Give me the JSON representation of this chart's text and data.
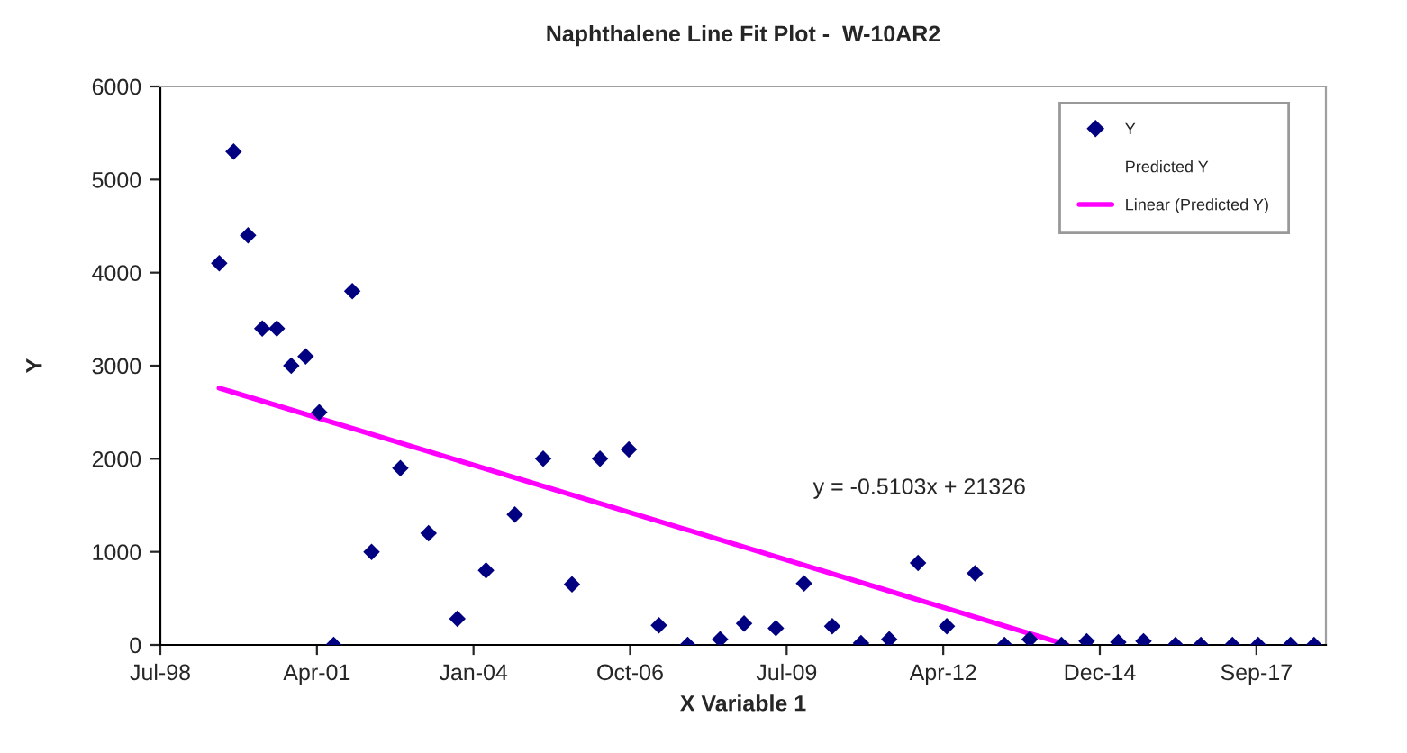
{
  "chart_data": {
    "type": "scatter",
    "title": "Naphthalene Line Fit Plot -  W-10AR2",
    "xlabel": "X Variable 1",
    "ylabel": "Y",
    "xlim": [
      "1998-07-24",
      "2018-12-10"
    ],
    "xticks": [
      {
        "value": "1998-07-24",
        "label": "Jul-98"
      },
      {
        "value": "2001-04-19",
        "label": "Apr-01"
      },
      {
        "value": "2004-01-14",
        "label": "Jan-04"
      },
      {
        "value": "2006-10-10",
        "label": "Oct-06"
      },
      {
        "value": "2009-07-06",
        "label": "Jul-09"
      },
      {
        "value": "2012-04-01",
        "label": "Apr-12"
      },
      {
        "value": "2014-12-27",
        "label": "Dec-14"
      },
      {
        "value": "2017-09-22",
        "label": "Sep-17"
      }
    ],
    "ylim": [
      0,
      6000
    ],
    "yticks": [
      0,
      1000,
      2000,
      3000,
      4000,
      5000,
      6000
    ],
    "legend": "top right",
    "series": [
      {
        "name": "Y",
        "marker": "diamond",
        "color": "#000080",
        "x": [
          "1999-08-04",
          "1999-11-04",
          "2000-02-04",
          "2000-05-05",
          "2000-08-06",
          "2000-11-06",
          "2001-02-06",
          "2001-05-04",
          "2001-08-04",
          "2001-12-01",
          "2002-04-03",
          "2002-10-04",
          "2003-04-02",
          "2003-10-03",
          "2004-04-03",
          "2004-10-04",
          "2005-04-03",
          "2005-10-04",
          "2006-04-01",
          "2006-10-02",
          "2007-04-12",
          "2007-10-13",
          "2008-05-07",
          "2008-10-07",
          "2009-04-28",
          "2009-10-25",
          "2010-04-23",
          "2010-10-24",
          "2011-04-22",
          "2011-10-23",
          "2012-04-24",
          "2012-10-21",
          "2013-04-27",
          "2013-10-05",
          "2014-04-26",
          "2014-10-04",
          "2015-04-24",
          "2015-10-02",
          "2016-04-23",
          "2016-10-02",
          "2017-04-22",
          "2017-10-03",
          "2018-04-28",
          "2018-09-25"
        ],
        "values": [
          4100,
          5300,
          4400,
          3400,
          3400,
          3000,
          3100,
          2500,
          0,
          3800,
          1000,
          1900,
          1200,
          280,
          800,
          1400,
          2000,
          650,
          2000,
          2100,
          210,
          0,
          60,
          230,
          180,
          660,
          200,
          20,
          60,
          880,
          200,
          770,
          0,
          60,
          0,
          40,
          30,
          40,
          0,
          0,
          0,
          0,
          0,
          0
        ]
      },
      {
        "name": "Predicted Y",
        "type": "scatter",
        "marker": "none"
      },
      {
        "name": "Linear (Predicted Y)",
        "type": "line",
        "marker": "none",
        "line_style": "solid",
        "color": "#ff00ff",
        "x": [
          "1999-08-04",
          "2014-06-01"
        ],
        "values": [
          2760,
          0
        ]
      }
    ],
    "annotations": [
      "y = -0.5103x + 21326"
    ]
  }
}
